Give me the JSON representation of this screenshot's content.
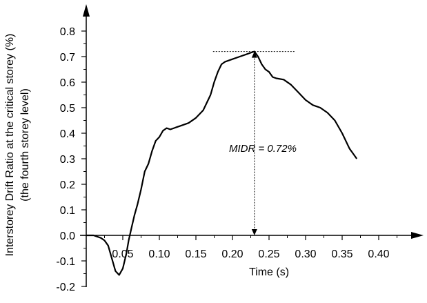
{
  "chart_data": {
    "type": "line",
    "title": "",
    "xlabel": "Time (s)",
    "ylabel": [
      "Interstorey Drift Ratio at the critical storey (%)",
      "(the fourth storey level)"
    ],
    "xlim": [
      0,
      0.42
    ],
    "ylim": [
      -0.2,
      0.85
    ],
    "x_ticks": [
      0.05,
      0.1,
      0.15,
      0.2,
      0.25,
      0.3,
      0.35,
      0.4
    ],
    "x_tick_labels": [
      "0.05",
      "0.10",
      "0.15",
      "0.20",
      "0.25",
      "0.30",
      "0.35",
      "0.40"
    ],
    "y_ticks": [
      -0.2,
      -0.1,
      0.0,
      0.1,
      0.2,
      0.3,
      0.4,
      0.5,
      0.6,
      0.7,
      0.8
    ],
    "y_tick_labels": [
      "-0.2",
      "-0.1",
      "0.0",
      "0.1",
      "0.2",
      "0.3",
      "0.4",
      "0.5",
      "0.6",
      "0.7",
      "0.8"
    ],
    "grid": false,
    "series": [
      {
        "x": [
          0.0,
          0.01,
          0.02,
          0.025,
          0.03,
          0.035,
          0.04,
          0.045,
          0.05,
          0.055,
          0.058,
          0.062,
          0.066,
          0.07,
          0.075,
          0.08,
          0.085,
          0.09,
          0.095,
          0.1,
          0.105,
          0.11,
          0.115,
          0.12,
          0.13,
          0.14,
          0.15,
          0.16,
          0.165,
          0.17,
          0.175,
          0.18,
          0.185,
          0.19,
          0.2,
          0.21,
          0.22,
          0.225,
          0.23,
          0.235,
          0.24,
          0.245,
          0.25,
          0.255,
          0.26,
          0.27,
          0.28,
          0.29,
          0.3,
          0.31,
          0.32,
          0.33,
          0.34,
          0.35,
          0.36,
          0.37
        ],
        "y": [
          0.0,
          0.0,
          -0.01,
          -0.02,
          -0.04,
          -0.09,
          -0.14,
          -0.155,
          -0.13,
          -0.07,
          -0.02,
          0.03,
          0.08,
          0.12,
          0.18,
          0.25,
          0.28,
          0.33,
          0.37,
          0.385,
          0.41,
          0.42,
          0.415,
          0.42,
          0.43,
          0.44,
          0.46,
          0.49,
          0.52,
          0.55,
          0.6,
          0.64,
          0.67,
          0.68,
          0.69,
          0.7,
          0.71,
          0.715,
          0.72,
          0.7,
          0.67,
          0.65,
          0.64,
          0.62,
          0.615,
          0.61,
          0.59,
          0.56,
          0.53,
          0.51,
          0.5,
          0.48,
          0.45,
          0.4,
          0.34,
          0.3
        ]
      }
    ],
    "peak": {
      "x": 0.23,
      "y": 0.72
    },
    "annotation": "MIDR = 0.72%"
  }
}
